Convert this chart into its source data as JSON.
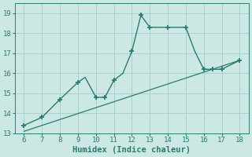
{
  "xlabel": "Humidex (Indice chaleur)",
  "xlim": [
    5.5,
    18.5
  ],
  "ylim": [
    13.0,
    19.5
  ],
  "xticks": [
    6,
    7,
    8,
    9,
    10,
    11,
    12,
    13,
    14,
    15,
    16,
    17,
    18
  ],
  "yticks": [
    13,
    14,
    15,
    16,
    17,
    18,
    19
  ],
  "curve_x": [
    6,
    7,
    8,
    9,
    9.4,
    10,
    10.5,
    11,
    11.5,
    12,
    12.5,
    13,
    14,
    15,
    15.5,
    16,
    16.5,
    17,
    18
  ],
  "curve_y": [
    13.4,
    13.8,
    14.7,
    15.55,
    15.8,
    14.8,
    14.8,
    15.65,
    16.0,
    17.1,
    18.9,
    18.3,
    18.3,
    18.3,
    17.1,
    16.2,
    16.2,
    16.2,
    16.65
  ],
  "marker_x": [
    6,
    7,
    8,
    9,
    10,
    10.5,
    11,
    12,
    12.5,
    13,
    14,
    15,
    16,
    16.5,
    17,
    18
  ],
  "marker_y": [
    13.4,
    13.8,
    14.7,
    15.55,
    14.8,
    14.8,
    15.65,
    17.1,
    18.9,
    18.3,
    18.3,
    18.3,
    16.2,
    16.2,
    16.2,
    16.65
  ],
  "line_x": [
    6,
    18
  ],
  "line_y": [
    13.1,
    16.65
  ],
  "curve_color": "#2d7b6e",
  "bg_color": "#cce8e4",
  "grid_color": "#aacfcc",
  "tick_fontsize": 6.5,
  "label_fontsize": 7.5
}
